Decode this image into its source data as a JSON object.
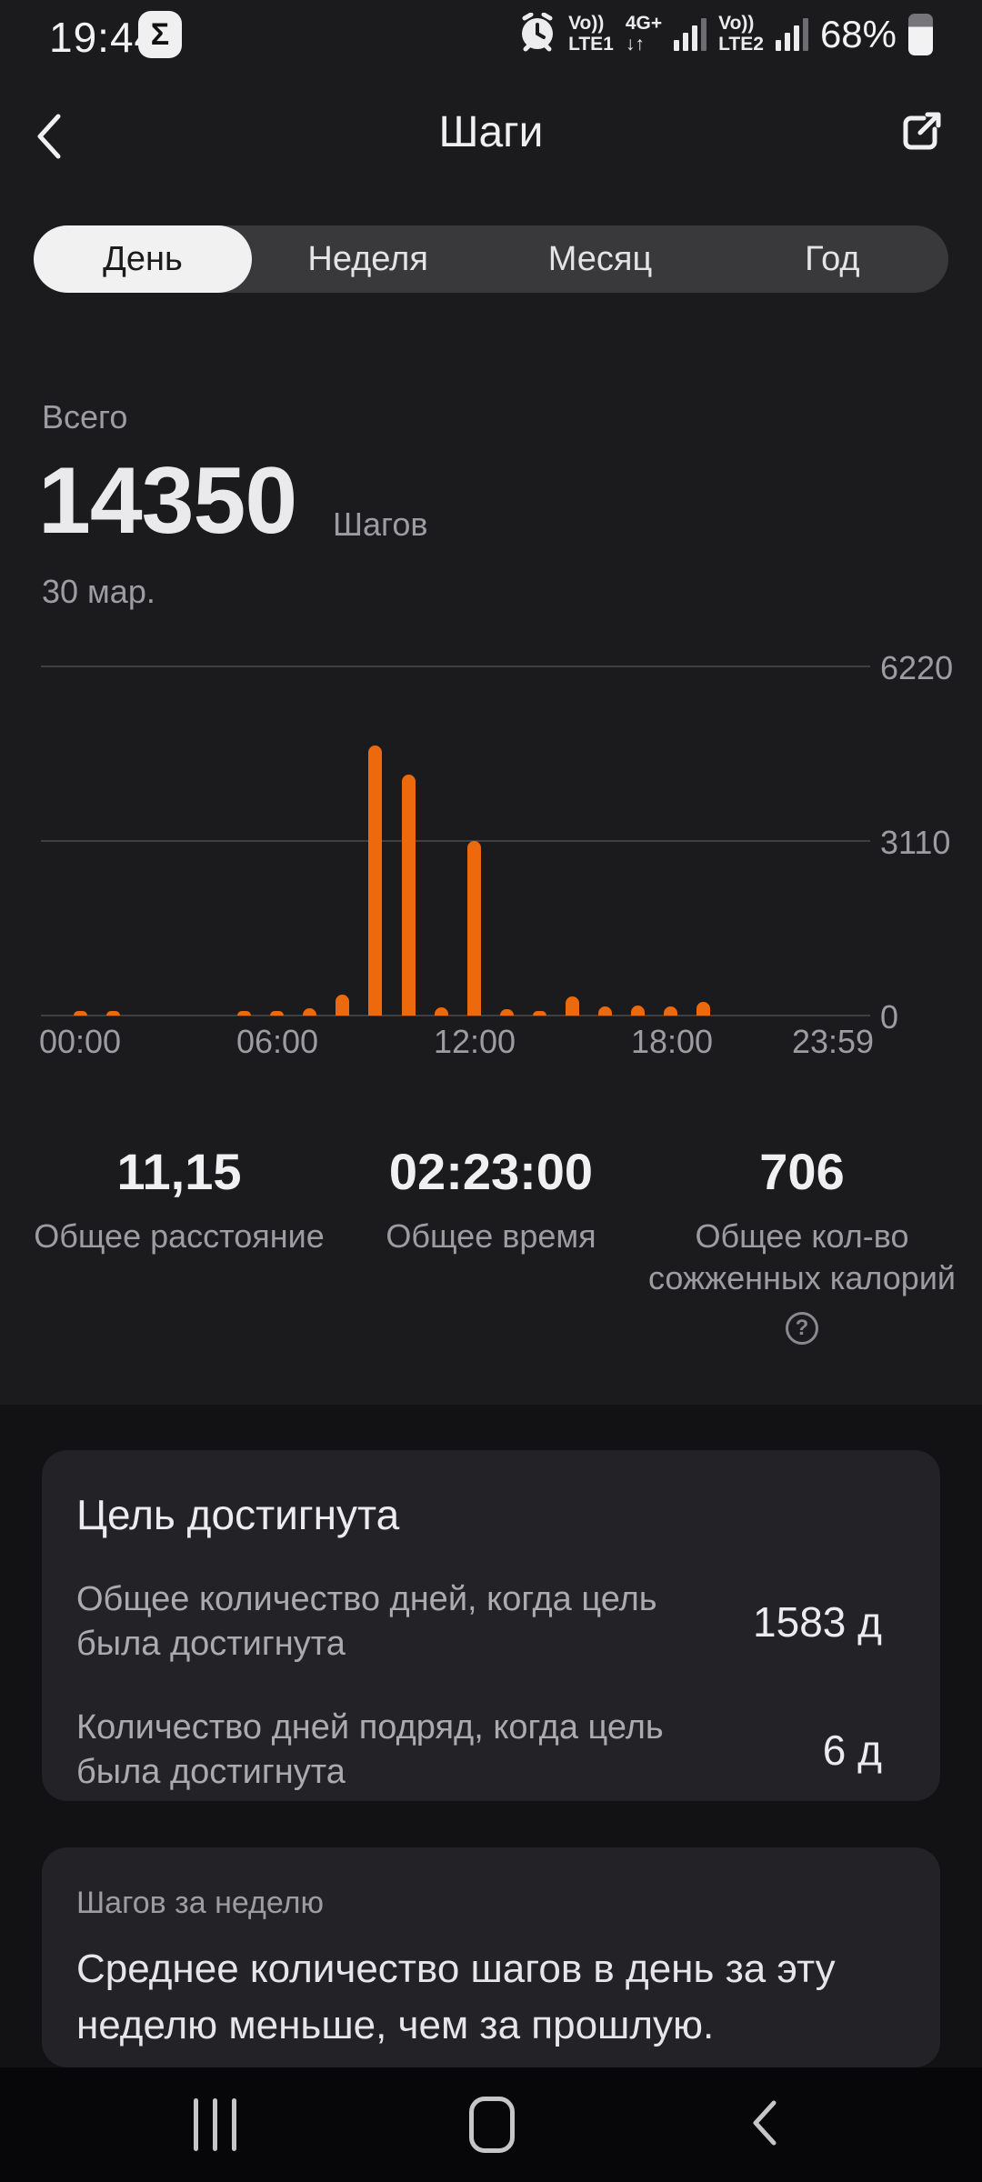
{
  "status_bar": {
    "time": "19:44",
    "app_badge": "Σ",
    "sim1": "Vo))\nLTE1",
    "network": "4G+\n↓↑",
    "sim2": "Vo))\nLTE2",
    "battery_percent": "68%"
  },
  "header": {
    "title": "Шаги"
  },
  "tabs": [
    {
      "label": "День",
      "selected": true
    },
    {
      "label": "Неделя",
      "selected": false
    },
    {
      "label": "Месяц",
      "selected": false
    },
    {
      "label": "Год",
      "selected": false
    }
  ],
  "summary": {
    "label": "Всего",
    "value": "14350",
    "unit": "Шагов",
    "date": "30 мар."
  },
  "chart_data": {
    "type": "bar",
    "x_unit": "hour",
    "x": [
      0,
      1,
      2,
      3,
      4,
      5,
      6,
      7,
      8,
      9,
      10,
      11,
      12,
      13,
      14,
      15,
      16,
      17,
      18,
      19,
      20,
      21,
      22,
      23
    ],
    "values": [
      60,
      60,
      0,
      0,
      0,
      45,
      60,
      125,
      380,
      4805,
      4300,
      140,
      3110,
      115,
      65,
      340,
      160,
      180,
      160,
      245,
      0,
      0,
      0,
      0
    ],
    "total": 14350,
    "ylim": [
      0,
      6220
    ],
    "y_ticks": [
      0,
      3110,
      6220
    ],
    "y_tick_labels": [
      "6220",
      "3110",
      "0"
    ],
    "x_tick_labels": [
      "00:00",
      "06:00",
      "12:00",
      "18:00",
      "23:59"
    ],
    "bar_color": "#EC6A0D",
    "grid": true,
    "legend": false
  },
  "stats": [
    {
      "value": "11,15",
      "label": "Общее расстояние"
    },
    {
      "value": "02:23:00",
      "label": "Общее время"
    },
    {
      "value": "706",
      "label": "Общее кол-во сожженных калорий",
      "help": "?"
    }
  ],
  "goal_card": {
    "title": "Цель достигнута",
    "rows": [
      {
        "label": "Общее количество дней, когда цель была достигнута",
        "value": "1583 д"
      },
      {
        "label": "Количество дней подряд, когда цель была достигнута",
        "value": "6 д"
      }
    ]
  },
  "week_card": {
    "title": "Шагов за неделю",
    "body": "Среднее количество шагов в день за эту неделю меньше, чем за прошлую."
  },
  "colors": {
    "accent": "#EC6A0D",
    "bg_top": "#1B1B1E",
    "bg_lower": "#121214",
    "card": "#232327",
    "text_primary": "#ECECEE",
    "text_secondary": "#9D9DA1"
  }
}
